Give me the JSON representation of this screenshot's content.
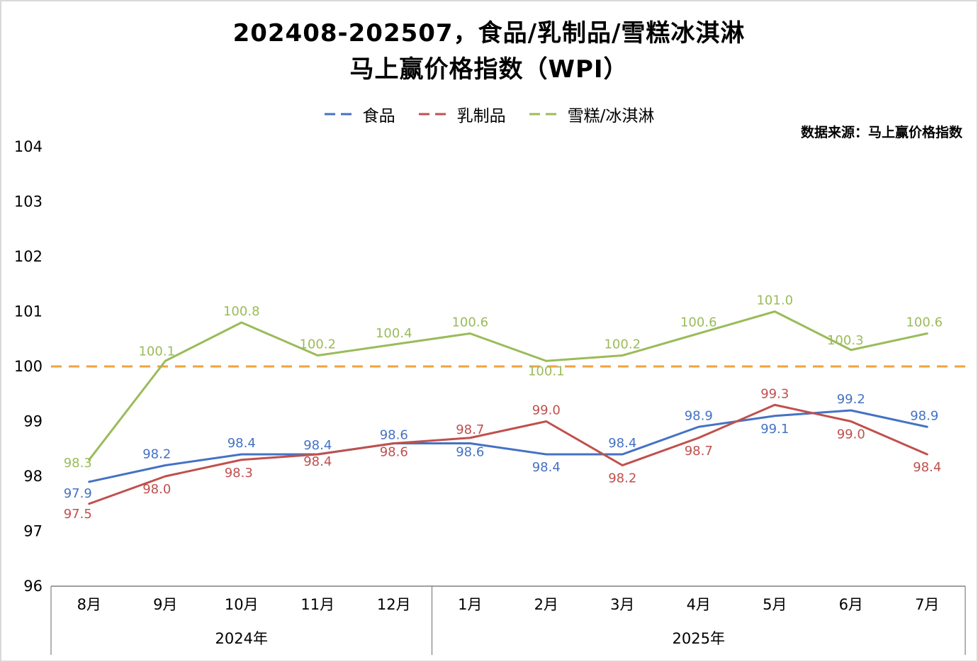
{
  "title": {
    "line1": "202408-202507，食品/乳制品/雪糕冰淇淋",
    "line2": "马上赢价格指数（WPI）"
  },
  "source_note": "数据来源：马上赢价格指数",
  "chart_data": {
    "type": "line",
    "title": "202408-202507，食品/乳制品/雪糕冰淇淋 马上赢价格指数（WPI）",
    "categories": [
      "8月",
      "9月",
      "10月",
      "11月",
      "12月",
      "1月",
      "2月",
      "3月",
      "4月",
      "5月",
      "6月",
      "7月"
    ],
    "category_groups": [
      {
        "label": "2024年",
        "span": 5
      },
      {
        "label": "2025年",
        "span": 7
      }
    ],
    "series": [
      {
        "name": "食品",
        "color": "#4472C4",
        "values": [
          97.9,
          98.2,
          98.4,
          98.4,
          98.6,
          98.6,
          98.4,
          98.4,
          98.9,
          99.1,
          99.2,
          98.9
        ]
      },
      {
        "name": "乳制品",
        "color": "#C0504D",
        "values": [
          97.5,
          98.0,
          98.3,
          98.4,
          98.6,
          98.7,
          99.0,
          98.2,
          98.7,
          99.3,
          99.0,
          98.4
        ]
      },
      {
        "name": "雪糕/冰淇淋",
        "color": "#9BBB59",
        "values": [
          98.3,
          100.1,
          100.8,
          100.2,
          100.4,
          100.6,
          100.1,
          100.2,
          100.6,
          101.0,
          100.3,
          100.6
        ]
      }
    ],
    "ylim": [
      96,
      104
    ],
    "yticks": [
      104,
      103,
      102,
      101,
      100,
      99,
      98,
      97,
      96
    ],
    "reference_line": {
      "value": 100,
      "color": "#F2A23E",
      "style": "dashed"
    },
    "legend_position": "top",
    "grid": false,
    "data_labels": true,
    "xlabel": "",
    "ylabel": ""
  }
}
